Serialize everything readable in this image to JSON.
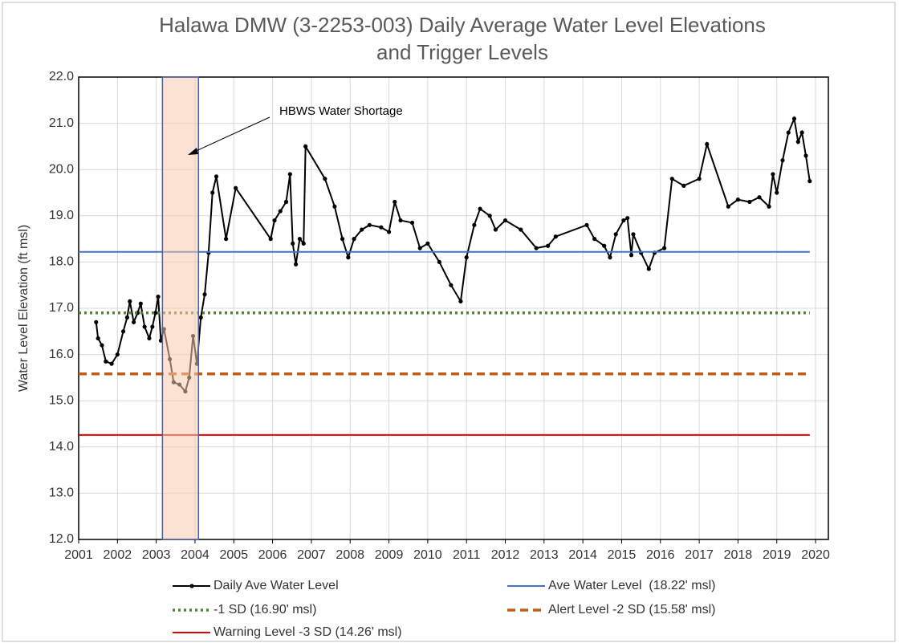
{
  "chart_data": {
    "type": "line",
    "title": [
      "Halawa DMW (3-2253-003) Daily Average Water Level Elevations",
      "and Trigger Levels"
    ],
    "y_label": "Water Level Elevation (ft msl)",
    "annotation": "HBWS Water Shortage",
    "shaded_span": [
      2003.16,
      2004.09
    ],
    "xlim": [
      2001,
      2020.33
    ],
    "xticks": [
      2001,
      2002,
      2003,
      2004,
      2005,
      2006,
      2007,
      2008,
      2009,
      2010,
      2011,
      2012,
      2013,
      2014,
      2015,
      2016,
      2017,
      2018,
      2019,
      2020
    ],
    "ylim": [
      12,
      22
    ],
    "yticks": [
      {
        "value": 12,
        "label": "12.0"
      },
      {
        "value": 13,
        "label": "13.0"
      },
      {
        "value": 14,
        "label": "14.0"
      },
      {
        "value": 15,
        "label": "15.0"
      },
      {
        "value": 16,
        "label": "16.0"
      },
      {
        "value": 17,
        "label": "17.0"
      },
      {
        "value": 18,
        "label": "18.0"
      },
      {
        "value": 19,
        "label": "19.0"
      },
      {
        "value": 20,
        "label": "20.0"
      },
      {
        "value": 21,
        "label": "21.0"
      },
      {
        "value": 22,
        "label": "22.0"
      }
    ],
    "grid": true,
    "series": [
      {
        "name": "Daily Ave Water Level",
        "color": "#000000",
        "x": [
          2001.45,
          2001.5,
          2001.6,
          2001.7,
          2001.85,
          2002.0,
          2002.15,
          2002.25,
          2002.32,
          2002.42,
          2002.52,
          2002.6,
          2002.7,
          2002.82,
          2002.9,
          2002.98,
          2003.05,
          2003.12,
          2003.2,
          2003.35,
          2003.45,
          2003.6,
          2003.75,
          2003.85,
          2003.95,
          2004.05,
          2004.15,
          2004.25,
          2004.35,
          2004.45,
          2004.55,
          2004.8,
          2005.05,
          2005.95,
          2006.05,
          2006.2,
          2006.35,
          2006.45,
          2006.52,
          2006.6,
          2006.7,
          2006.8,
          2006.85,
          2007.35,
          2007.6,
          2007.8,
          2007.95,
          2008.1,
          2008.3,
          2008.5,
          2008.8,
          2009.0,
          2009.15,
          2009.3,
          2009.6,
          2009.8,
          2010.0,
          2010.3,
          2010.6,
          2010.85,
          2011.0,
          2011.2,
          2011.35,
          2011.6,
          2011.75,
          2012.0,
          2012.4,
          2012.8,
          2013.1,
          2013.3,
          2014.1,
          2014.3,
          2014.55,
          2014.7,
          2014.85,
          2015.05,
          2015.15,
          2015.25,
          2015.3,
          2015.5,
          2015.7,
          2015.85,
          2016.1,
          2016.3,
          2016.6,
          2017.0,
          2017.2,
          2017.75,
          2018.0,
          2018.3,
          2018.55,
          2018.8,
          2018.9,
          2019.0,
          2019.15,
          2019.3,
          2019.45,
          2019.55,
          2019.65,
          2019.75,
          2019.85
        ],
        "values": [
          16.7,
          16.35,
          16.2,
          15.85,
          15.8,
          16.0,
          16.5,
          16.8,
          17.15,
          16.7,
          16.9,
          17.1,
          16.6,
          16.35,
          16.6,
          16.9,
          17.25,
          16.3,
          16.55,
          15.9,
          15.4,
          15.35,
          15.2,
          15.5,
          16.4,
          15.8,
          16.8,
          17.3,
          18.2,
          19.5,
          19.85,
          18.5,
          19.6,
          18.5,
          18.9,
          19.1,
          19.3,
          19.9,
          18.4,
          17.95,
          18.5,
          18.4,
          20.5,
          19.8,
          19.2,
          18.5,
          18.1,
          18.5,
          18.7,
          18.8,
          18.75,
          18.65,
          19.3,
          18.9,
          18.85,
          18.3,
          18.4,
          18.0,
          17.5,
          17.15,
          18.1,
          18.8,
          19.15,
          19.0,
          18.7,
          18.9,
          18.7,
          18.3,
          18.35,
          18.55,
          18.8,
          18.5,
          18.35,
          18.1,
          18.6,
          18.9,
          18.95,
          18.15,
          18.6,
          18.2,
          17.85,
          18.2,
          18.3,
          19.8,
          19.65,
          19.8,
          20.55,
          19.2,
          19.35,
          19.3,
          19.4,
          19.2,
          19.9,
          19.5,
          20.2,
          20.8,
          21.1,
          20.6,
          20.8,
          20.3,
          19.75
        ]
      },
      {
        "name": "Ave Water Level  (18.22' msl)",
        "color": "#4472c4",
        "dash": "solid",
        "level": 18.22
      },
      {
        "name": "-1 SD (16.90' msl)",
        "color": "#548235",
        "dash": "dotted",
        "level": 16.9
      },
      {
        "name": "Alert Level -2 SD (15.58' msl)",
        "color": "#c55a11",
        "dash": "dashed",
        "level": 15.58
      },
      {
        "name": "Warning Level -3 SD (14.26' msl)",
        "color": "#e00000",
        "dash": "solid",
        "level": 14.26
      }
    ]
  }
}
